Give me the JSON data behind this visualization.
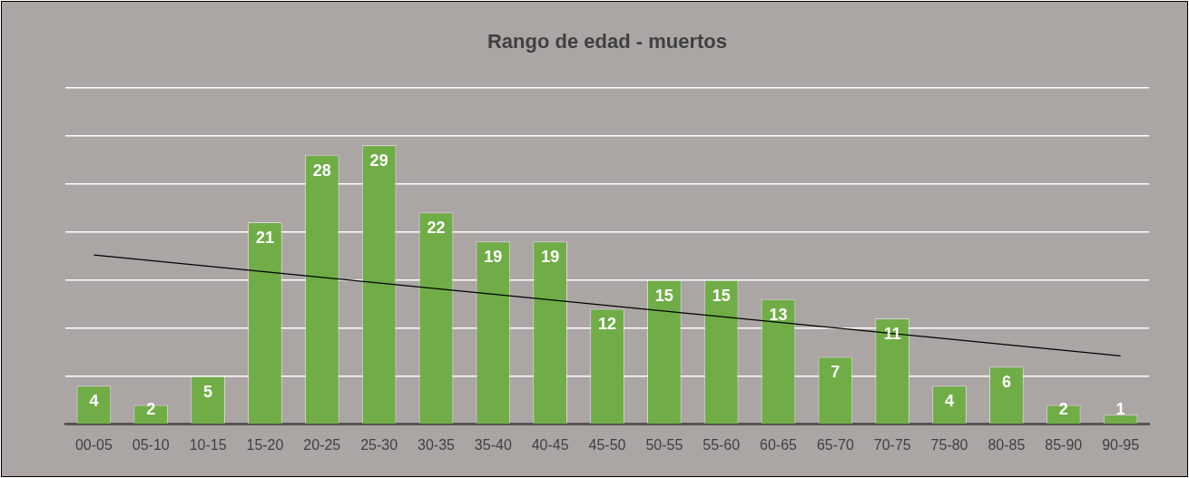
{
  "chart_data": {
    "type": "bar",
    "title": "Rango de edad - muertos",
    "categories": [
      "00-05",
      "05-10",
      "10-15",
      "15-20",
      "20-25",
      "25-30",
      "30-35",
      "35-40",
      "40-45",
      "45-50",
      "50-55",
      "55-60",
      "60-65",
      "65-70",
      "70-75",
      "75-80",
      "80-85",
      "85-90",
      "90-95"
    ],
    "series": [
      {
        "color": "#70ad47",
        "values": [
          4,
          2,
          5,
          21,
          28,
          29,
          22,
          19,
          19,
          12,
          15,
          15,
          13,
          7,
          11,
          4,
          6,
          2,
          1
        ],
        "value_labels": [
          "4",
          "2",
          "5",
          "21",
          "28",
          "29",
          "22",
          "19",
          "19",
          "12",
          "15",
          "15",
          "13",
          "7",
          "11",
          "4",
          "6",
          "2",
          "1"
        ]
      },
      {
        "type": "line",
        "color": "#000000",
        "x": [
          "00-05",
          "90-95"
        ],
        "values": [
          17.6,
          7.1
        ]
      }
    ],
    "ylim": [
      0,
      35
    ],
    "yticks": [
      {
        "value": 0,
        "label": null
      },
      {
        "value": 5,
        "label": null
      },
      {
        "value": 10,
        "label": null
      },
      {
        "value": 15,
        "label": null
      },
      {
        "value": 20,
        "label": null
      },
      {
        "value": 25,
        "label": null
      },
      {
        "value": 30,
        "label": null
      },
      {
        "value": 35,
        "label": null
      }
    ],
    "grid": "y",
    "tick_labels": "x",
    "legend": false
  }
}
